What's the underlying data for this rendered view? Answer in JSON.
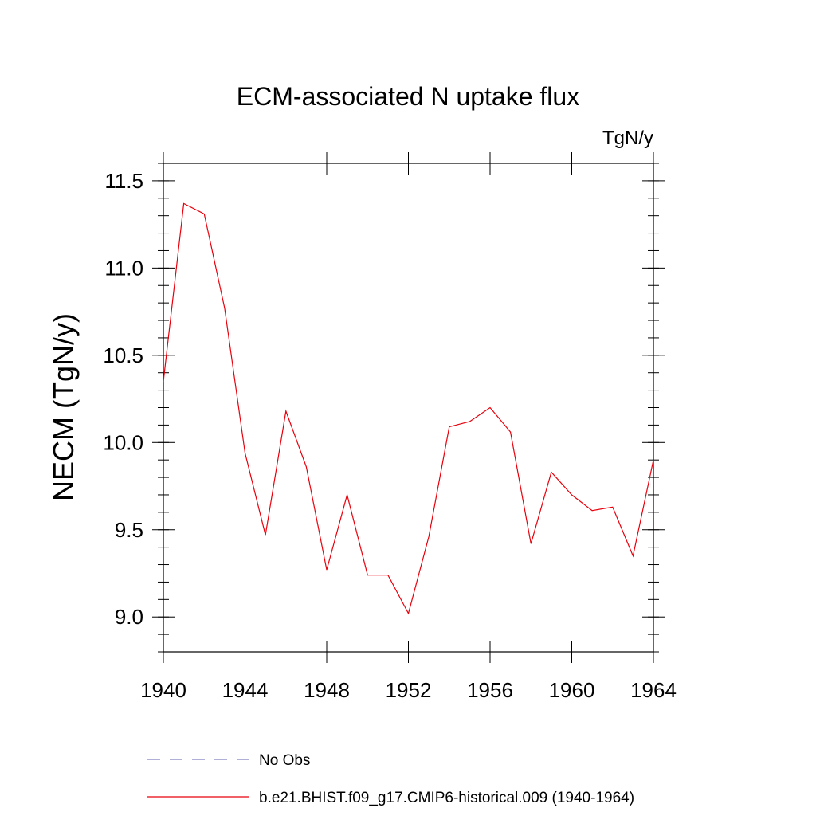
{
  "chart_data": {
    "type": "line",
    "title": "ECM-associated N uptake flux",
    "units_label": "TgN/y",
    "ylabel": "NECM  (TgN/y)",
    "xlabel": "",
    "xlim": [
      1940,
      1964
    ],
    "ylim": [
      8.8,
      11.6
    ],
    "x_ticks": [
      1940,
      1944,
      1948,
      1952,
      1956,
      1960,
      1964
    ],
    "y_ticks": [
      "9.0",
      "9.5",
      "10.0",
      "10.5",
      "11.0",
      "11.5"
    ],
    "grid": false,
    "legend_placement": "bottom",
    "series": [
      {
        "name": "b.e21.BHIST.f09_g17.CMIP6-historical.009 (1940-1964)",
        "color": "#e8000b",
        "style": "solid",
        "x": [
          1940,
          1941,
          1942,
          1943,
          1944,
          1945,
          1946,
          1947,
          1948,
          1949,
          1950,
          1951,
          1952,
          1953,
          1954,
          1955,
          1956,
          1957,
          1958,
          1959,
          1960,
          1961,
          1962,
          1963,
          1964
        ],
        "y": [
          10.35,
          11.37,
          11.31,
          10.77,
          9.94,
          9.47,
          10.18,
          9.86,
          9.27,
          9.7,
          9.24,
          9.24,
          9.02,
          9.46,
          10.09,
          10.12,
          10.2,
          10.06,
          9.42,
          9.83,
          9.7,
          9.61,
          9.63,
          9.35,
          9.9
        ]
      },
      {
        "name": "No Obs",
        "color": "#7f7fbf",
        "style": "dashed",
        "x": [],
        "y": []
      }
    ]
  }
}
